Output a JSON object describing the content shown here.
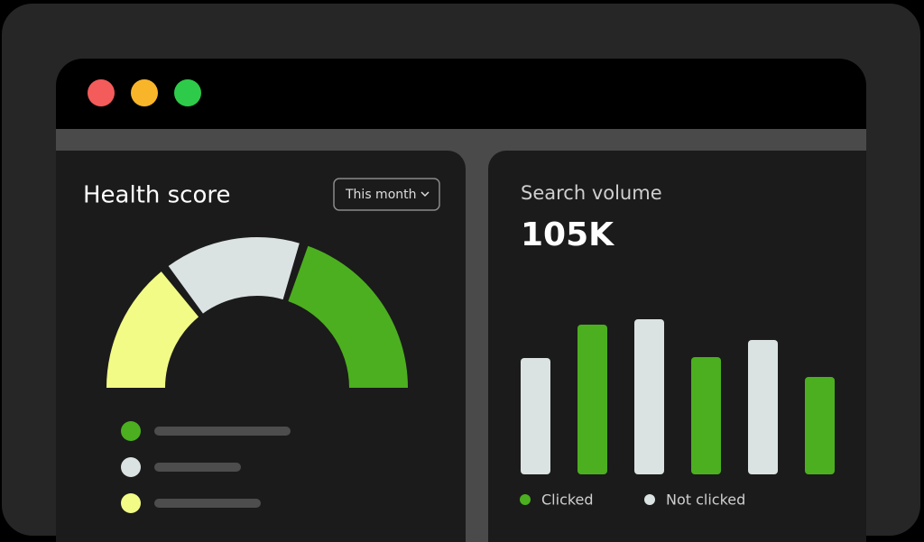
{
  "controls": {
    "filter": "This month"
  },
  "chart_data": [
    {
      "type": "gauge",
      "title": "Health score",
      "values": [
        29,
        31,
        40
      ],
      "colors": [
        "#f2fb85",
        "#dbe2e2",
        "#4caf1f"
      ]
    },
    {
      "type": "bar",
      "title": "Search volume",
      "subtitle": "105K",
      "categories": [
        null,
        null,
        null
      ],
      "series": [
        {
          "name": "Clicked",
          "color": "#4caf1f",
          "values": [
            166,
            130,
            108
          ]
        },
        {
          "name": "Not clicked",
          "color": "#dbe2e2",
          "values": [
            129,
            172,
            149
          ]
        }
      ],
      "ylim": [
        0,
        180
      ]
    }
  ]
}
